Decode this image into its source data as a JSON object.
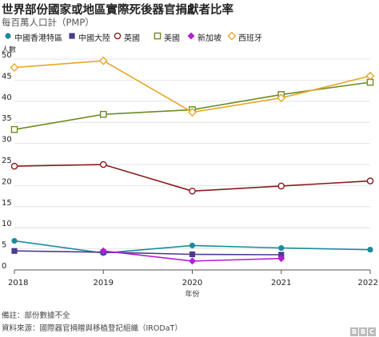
{
  "title": "世界部份國家或地區實際死後器官捐獻者比率",
  "subtitle": "每百萬人口計（PMP）",
  "footnote": "備註：部份數據不全",
  "source": "資料來源：國際器官捐贈與移植登記組織（IRODaT）",
  "logo_text": "BBC",
  "chart_data": {
    "type": "line",
    "ylabel": "人數",
    "xlabel": "年份",
    "x": [
      2018,
      2019,
      2020,
      2021,
      2022
    ],
    "xlim": [
      2018,
      2022
    ],
    "ylim": [
      0,
      50
    ],
    "yticks": [
      0,
      5,
      10,
      15,
      20,
      25,
      30,
      35,
      40,
      45,
      50
    ],
    "grid": true,
    "legend_position": "top",
    "series": [
      {
        "name": "中國香港特區",
        "color": "#1a8c9c",
        "marker": "circle",
        "values": [
          6.9,
          4.0,
          5.8,
          5.2,
          4.8
        ]
      },
      {
        "name": "中國大陸",
        "color": "#4b3b8f",
        "marker": "square",
        "values": [
          4.5,
          4.2,
          3.7,
          3.6,
          null
        ]
      },
      {
        "name": "英國",
        "color": "#8b1a1a",
        "marker": "circle-open",
        "values": [
          24.6,
          25.0,
          18.7,
          19.9,
          21.1
        ]
      },
      {
        "name": "美國",
        "color": "#6b8c21",
        "marker": "square-open",
        "values": [
          33.3,
          36.9,
          38.0,
          41.6,
          44.5
        ]
      },
      {
        "name": "新加坡",
        "color": "#b31fd6",
        "marker": "diamond",
        "values": [
          null,
          4.5,
          2.1,
          2.7,
          null
        ]
      },
      {
        "name": "西班牙",
        "color": "#e8a628",
        "marker": "diamond-open",
        "values": [
          48.0,
          49.6,
          37.4,
          40.8,
          46.0
        ]
      }
    ]
  }
}
